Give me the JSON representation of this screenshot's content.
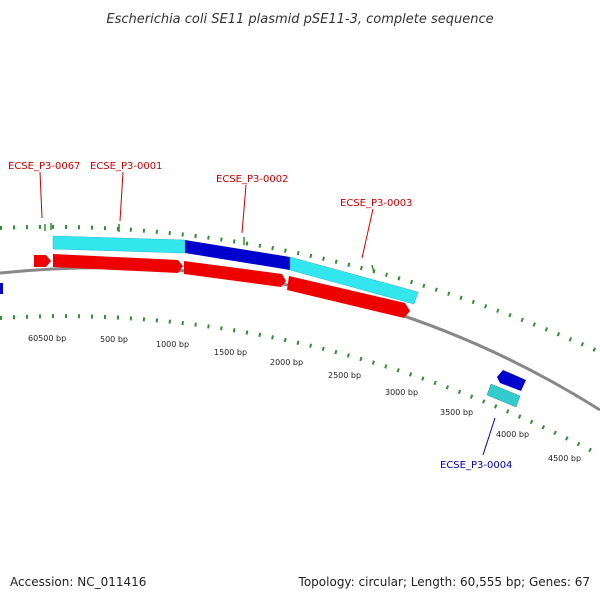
{
  "title": "Escherichia coli SE11 plasmid pSE11-3, complete sequence",
  "accession_text": "Accession: NC_011416",
  "summary_text": "Topology: circular; Length: 60,555 bp; Genes: 67",
  "colors": {
    "backbone": "#888888",
    "forward_cds": "#ee0000",
    "reverse_cds": "#0000cc",
    "forward_band": "#33e6ee",
    "reverse_band": "#0000cc",
    "gc_ticks": "#2f8f2f",
    "label_forward": "#cc0000",
    "label_reverse": "#0000aa"
  },
  "gene_labels": [
    {
      "id": "ECSE_P3-0067",
      "strand": "forward"
    },
    {
      "id": "ECSE_P3-0001",
      "strand": "forward"
    },
    {
      "id": "ECSE_P3-0002",
      "strand": "forward"
    },
    {
      "id": "ECSE_P3-0003",
      "strand": "forward"
    },
    {
      "id": "ECSE_P3-0004",
      "strand": "reverse"
    }
  ],
  "scale_labels": [
    "60500 bp",
    "500 bp",
    "1000 bp",
    "1500 bp",
    "2000 bp",
    "2500 bp",
    "3000 bp",
    "3500 bp",
    "4000 bp",
    "4500 bp"
  ]
}
